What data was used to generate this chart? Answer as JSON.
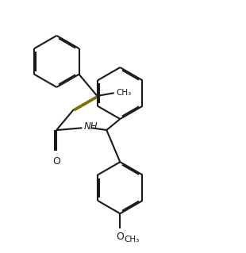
{
  "background_color": "#ffffff",
  "line_color": "#1a1a1a",
  "line_color_alkene": "#7a7000",
  "line_width": 1.5,
  "dbo": 0.055,
  "figsize": [
    3.1,
    3.19
  ],
  "dpi": 100,
  "xlim": [
    0,
    10
  ],
  "ylim": [
    0,
    10.3
  ]
}
